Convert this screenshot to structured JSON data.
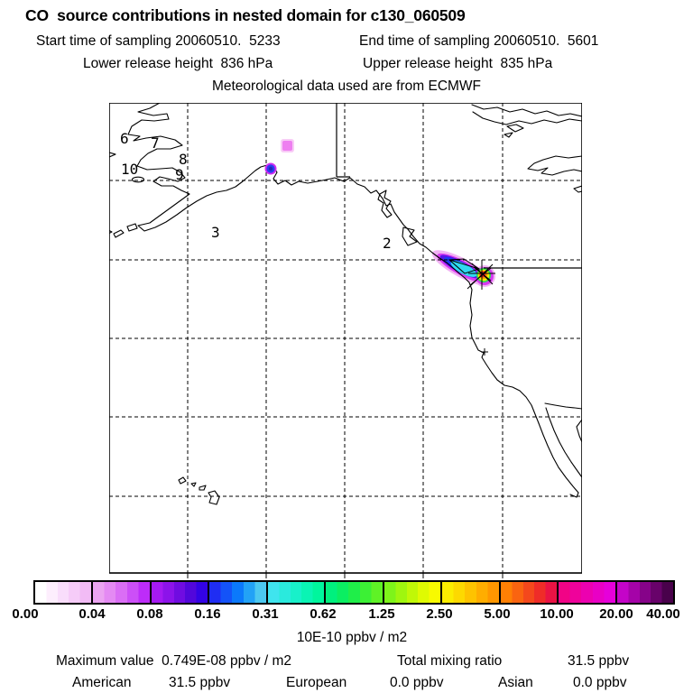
{
  "header": {
    "title": "CO  source contributions in nested domain for c130_060509",
    "start_time": "Start time of sampling 20060510.  5233",
    "end_time": "End time of sampling 20060510.  5601",
    "lower_release": "Lower release height  836 hPa",
    "upper_release": "Upper release height  835 hPa",
    "met_source": "Meteorological data used are from ECMWF"
  },
  "map": {
    "waypoint_labels": {
      "w2": "2",
      "w3": "3",
      "w6": "6",
      "w7": "7",
      "w8": "8",
      "w9": "9",
      "w10": "10"
    }
  },
  "colorbar": {
    "units": "10E-10 ppbv / m2",
    "ticks": [
      "0.00",
      "0.04",
      "0.08",
      "0.16",
      "0.31",
      "0.62",
      "1.25",
      "2.50",
      "5.00",
      "10.00",
      "20.00",
      "40.00"
    ],
    "segments": [
      [
        "#ffffff",
        "#fdeefd",
        "#f9ddfb",
        "#f6ccf8",
        "#f2bbf5"
      ],
      [
        "#eba4f1",
        "#e48af3",
        "#da6ef5",
        "#cc4ff7",
        "#bd2cf9"
      ],
      [
        "#a51af2",
        "#8c13ea",
        "#700ce1",
        "#5207db",
        "#3303e5"
      ],
      [
        "#1f2df3",
        "#1453f8",
        "#0b79fb",
        "#22a2f6",
        "#4cc8f0"
      ],
      [
        "#3fe4ee",
        "#2aeadd",
        "#18f0ca",
        "#0af4b4",
        "#00f69d"
      ],
      [
        "#00f07e",
        "#0bee62",
        "#1fee49",
        "#3cf035",
        "#5ff226"
      ],
      [
        "#7ef41a",
        "#9ff60f",
        "#c0f807",
        "#dffa02",
        "#f8fa00"
      ],
      [
        "#fbed00",
        "#fdd900",
        "#fec300",
        "#ffad00",
        "#ff9700"
      ],
      [
        "#ff8004",
        "#fa6410",
        "#f4481c",
        "#ef2c28",
        "#ea1344"
      ],
      [
        "#f10386",
        "#ef029b",
        "#ec01b0",
        "#e900c5",
        "#e600da"
      ],
      [
        "#c404c8",
        "#a503a8",
        "#860389",
        "#68026a",
        "#49014b"
      ]
    ]
  },
  "plume": {
    "lavender": "#f2b2f4",
    "magenta": "#d83af2",
    "violet": "#5a13e8",
    "blue": "#1b3bf5",
    "cyan": "#2fd9f0",
    "green": "#2ae14f",
    "yellow": "#f4ee00",
    "orange": "#ff9d00",
    "red": "#f2271c",
    "maroon": "#6b0f3a",
    "dot_ring": "#cf2bf0",
    "dot_core": "#2b3cf0",
    "dot_center": "#1f2bb5",
    "square_halo": "#f8ccf6",
    "square": "#ee7ff0"
  },
  "footer": {
    "max_value": "Maximum value  0.749E-08 ppbv / m2",
    "total_label": "Total mixing ratio",
    "total_value": "31.5 ppbv",
    "contributions": [
      {
        "name": "American",
        "value": "31.5 ppbv"
      },
      {
        "name": "European",
        "value": "0.0 ppbv"
      },
      {
        "name": "Asian",
        "value": "0.0 ppbv"
      }
    ]
  },
  "chart_data": {
    "type": "map-contour",
    "title": "CO source contributions in nested domain for c130_060509",
    "subtitle": [
      "Start time of sampling 20060510. 5233",
      "End time of sampling 20060510. 5601",
      "Lower release height 836 hPa",
      "Upper release height 835 hPa",
      "Meteorological data used are from ECMWF"
    ],
    "colorbar_levels": [
      0.0,
      0.04,
      0.08,
      0.16,
      0.31,
      0.62,
      1.25,
      2.5,
      5.0,
      10.0,
      20.0,
      40.0
    ],
    "colorbar_units": "10E-10 ppbv / m2",
    "maximum_value_ppbv_per_m2": "0.749E-08",
    "total_mixing_ratio_ppbv": 31.5,
    "contributions_ppbv": {
      "American": 31.5,
      "European": 0.0,
      "Asian": 0.0
    },
    "met_data_source": "ECMWF",
    "visible_flight_waypoints": [
      "2",
      "3",
      "6",
      "7",
      "8",
      "9",
      "10"
    ],
    "features": [
      "main source-contribution plume (values up to ~40 x 10E-10 ppbv/m2) elongated NW-SE along Pacific Northwest coast near 49N with release-point asterisk marker",
      "small contribution spot (blue/magenta dot) at head of Cook Inlet near Anchorage, Alaska",
      "faint pink grid cell northeast of Anchorage",
      "coastlines: Alaska, Aleutian Peninsula, British Columbia, US west coast, Baja California, Hawaii",
      "political borders: Alaska 141W line and US-Canada 49N line; dashed lat/lon graticule"
    ],
    "legend_position": "horizontal colorbar below map"
  }
}
